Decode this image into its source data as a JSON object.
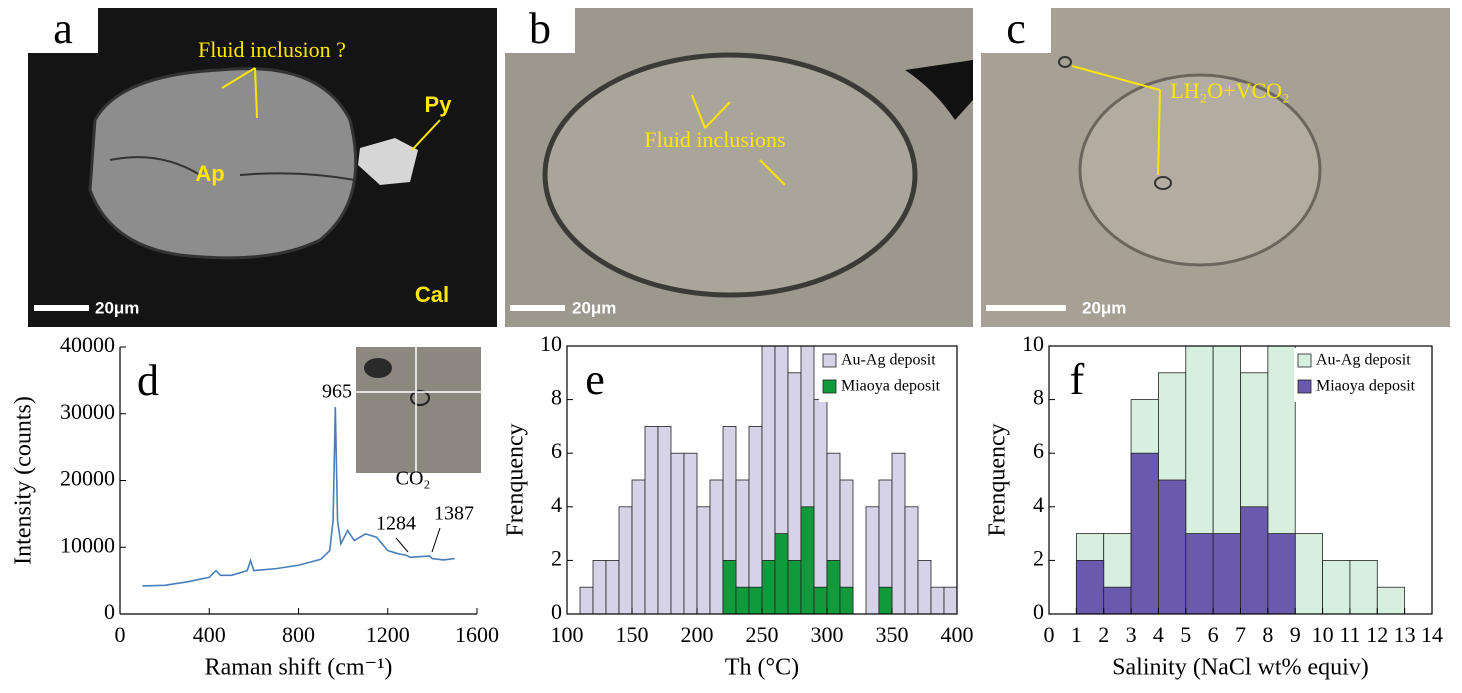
{
  "panels": [
    {
      "letter": "a",
      "labels": [
        "Fluid inclusion ?",
        "Ap",
        "Py",
        "Cal"
      ],
      "scale": "20μm"
    },
    {
      "letter": "b",
      "labels": [
        "Fluid inclusions"
      ],
      "scale": "20μm"
    },
    {
      "letter": "c",
      "labels": [
        "LH₂O+VCO₂"
      ],
      "scale": "20μm"
    }
  ],
  "chart_data": [
    {
      "type": "line",
      "letter": "d",
      "xlabel": "Raman shift (cm⁻¹)",
      "ylabel": "Intensity (counts)",
      "x": [
        100,
        200,
        300,
        400,
        430,
        450,
        500,
        570,
        585,
        600,
        700,
        800,
        900,
        940,
        955,
        965,
        975,
        990,
        1020,
        1050,
        1100,
        1150,
        1200,
        1250,
        1284,
        1300,
        1387,
        1400,
        1450,
        1500
      ],
      "values": [
        4200,
        4300,
        4800,
        5500,
        6500,
        5800,
        5800,
        6500,
        8000,
        6500,
        6800,
        7300,
        8200,
        9500,
        14000,
        31000,
        14000,
        10500,
        12500,
        11000,
        12000,
        11500,
        9500,
        9000,
        8800,
        8500,
        8700,
        8300,
        8100,
        8300
      ],
      "color": "#4a7ebb",
      "annotations": [
        "965",
        "1284",
        "1387",
        "CO₂"
      ],
      "xlim": [
        0,
        1600
      ],
      "xticks": [
        0,
        400,
        800,
        1200,
        1600
      ],
      "ylim": [
        0,
        40000
      ],
      "yticks": [
        0,
        10000,
        20000,
        30000,
        40000
      ]
    },
    {
      "type": "histogram",
      "letter": "e",
      "xlabel": "Th (°C)",
      "ylabel": "Frenquency",
      "bins": [
        110,
        120,
        130,
        140,
        150,
        160,
        170,
        180,
        190,
        200,
        210,
        220,
        230,
        240,
        250,
        260,
        270,
        280,
        290,
        300,
        310,
        320,
        330,
        340,
        350,
        360,
        370,
        380,
        390,
        400
      ],
      "series": [
        {
          "name": "Au-Ag deposit",
          "color": "#d6d2e8",
          "values": [
            1,
            2,
            2,
            4,
            5,
            7,
            7,
            6,
            6,
            4,
            5,
            7,
            5,
            7,
            10,
            10,
            9,
            10,
            8,
            6,
            5,
            0,
            4,
            5,
            6,
            4,
            2,
            1,
            1
          ]
        },
        {
          "name": "Miaoya deposit",
          "color": "#109a3c",
          "values": [
            0,
            0,
            0,
            0,
            0,
            0,
            0,
            0,
            0,
            0,
            0,
            2,
            1,
            1,
            2,
            3,
            2,
            4,
            1,
            2,
            1,
            0,
            0,
            1,
            0,
            0,
            0,
            0,
            0
          ]
        }
      ],
      "xlim": [
        100,
        400
      ],
      "xticks": [
        100,
        150,
        200,
        250,
        300,
        350,
        400
      ],
      "ylim": [
        0,
        10
      ],
      "yticks": [
        0,
        2,
        4,
        6,
        8,
        10
      ]
    },
    {
      "type": "histogram",
      "letter": "f",
      "xlabel": "Salinity (NaCl wt% equiv)",
      "ylabel": "Frenquency",
      "bins": [
        1,
        2,
        3,
        4,
        5,
        6,
        7,
        8,
        9,
        10,
        11,
        12,
        13
      ],
      "series": [
        {
          "name": "Au-Ag deposit",
          "color": "#d7efdf",
          "values": [
            3,
            3,
            8,
            9,
            10,
            10,
            9,
            10,
            3,
            2,
            2,
            1
          ]
        },
        {
          "name": "Miaoya deposit",
          "color": "#6a5aad",
          "values": [
            2,
            1,
            6,
            5,
            3,
            3,
            4,
            3,
            0,
            0,
            0,
            0
          ]
        }
      ],
      "xlim": [
        0,
        14
      ],
      "xticks": [
        0,
        1,
        2,
        3,
        4,
        5,
        6,
        7,
        8,
        9,
        10,
        11,
        12,
        13,
        14
      ],
      "ylim": [
        0,
        10
      ],
      "yticks": [
        0,
        2,
        4,
        6,
        8,
        10
      ]
    }
  ]
}
